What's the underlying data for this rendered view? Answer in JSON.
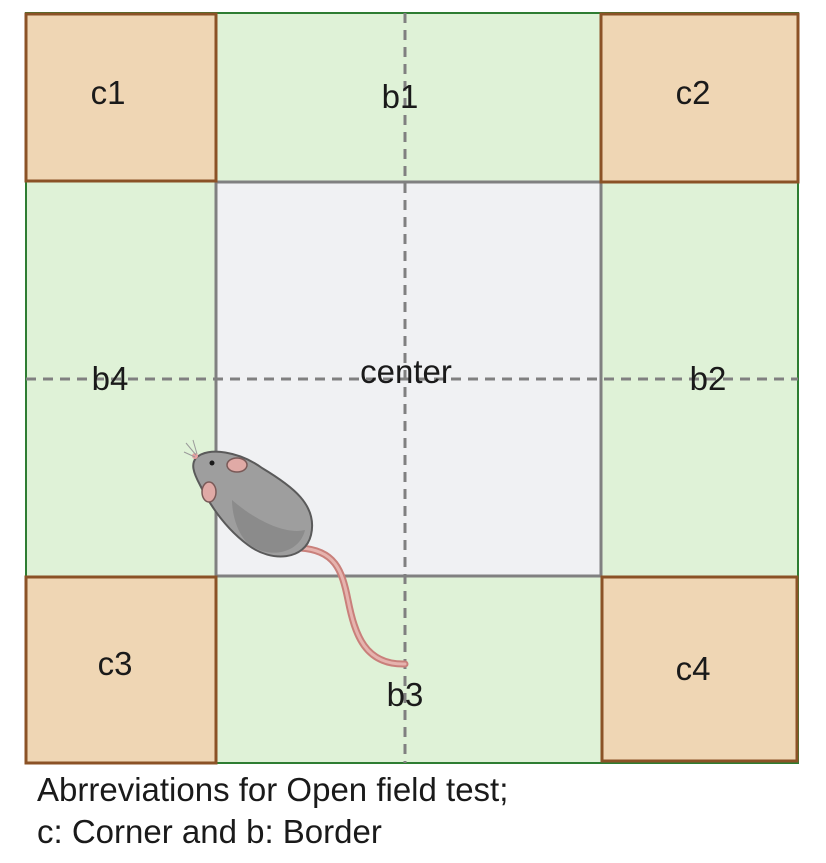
{
  "zones": {
    "corners": [
      "c1",
      "c2",
      "c3",
      "c4"
    ],
    "borders": [
      "b1",
      "b2",
      "b3",
      "b4"
    ],
    "center": "center"
  },
  "caption": {
    "line1": "Abrreviations for Open field test;",
    "line2": "c: Corner and b: Border"
  },
  "colors": {
    "corner_fill": "#efd6b4",
    "corner_stroke": "#8b5226",
    "border_fill": "#dff2d7",
    "border_stroke": "#2e7d32",
    "center_fill": "#f0f1f3",
    "center_stroke": "#808080",
    "divider": "#808080",
    "mouse_body": "#9e9e9e",
    "mouse_tail": "#d89a95"
  },
  "icons": [
    "mouse-icon"
  ]
}
